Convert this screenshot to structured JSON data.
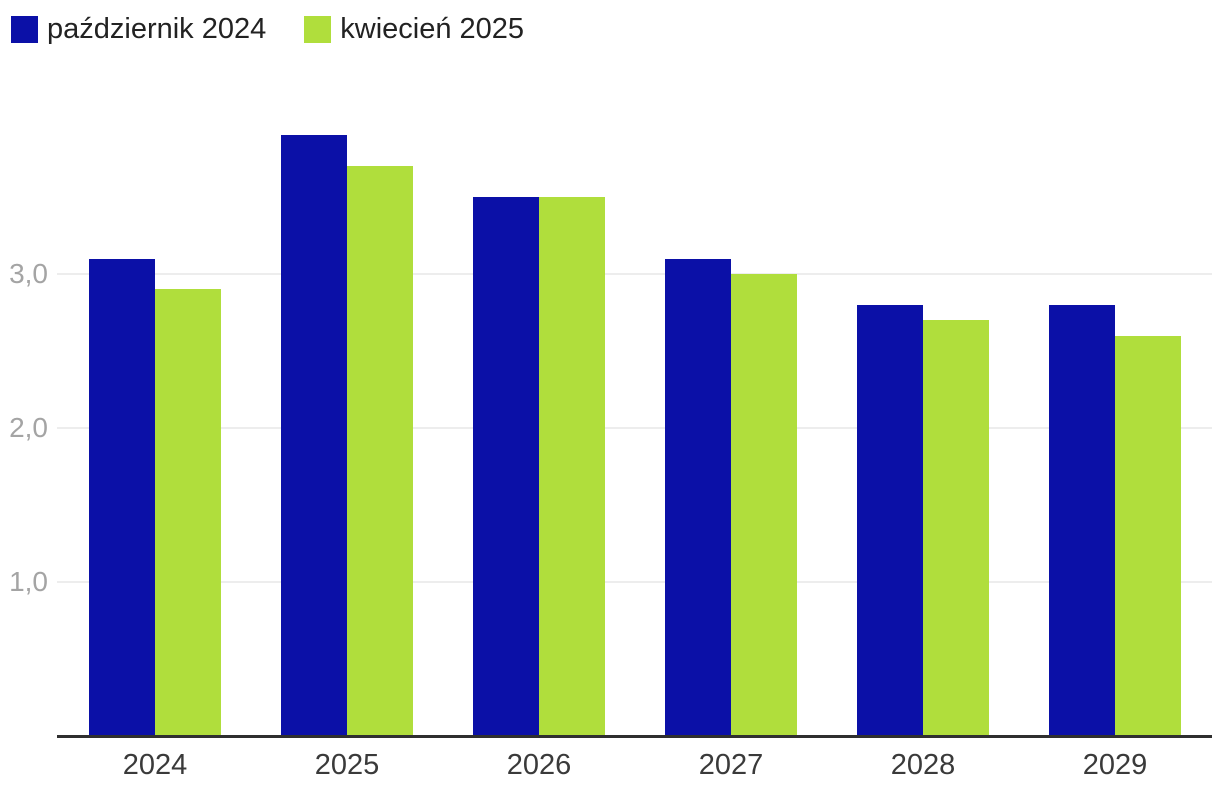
{
  "legend": {
    "items": [
      {
        "label": "październik 2024",
        "color": "#0b10a7"
      },
      {
        "label": "kwiecień 2025",
        "color": "#b0de3c"
      }
    ]
  },
  "chart_data": {
    "type": "bar",
    "categories": [
      "2024",
      "2025",
      "2026",
      "2027",
      "2028",
      "2029"
    ],
    "series": [
      {
        "name": "październik 2024",
        "color": "#0b10a7",
        "values": [
          3.1,
          3.9,
          3.5,
          3.1,
          2.8,
          2.8
        ]
      },
      {
        "name": "kwiecień 2025",
        "color": "#b0de3c",
        "values": [
          2.9,
          3.7,
          3.5,
          3.0,
          2.7,
          2.6
        ]
      }
    ],
    "title": "",
    "xlabel": "",
    "ylabel": "",
    "ylim": [
      0,
      4.2
    ],
    "yticks": [
      1,
      2,
      3
    ],
    "ytick_labels": [
      "1,0",
      "2,0",
      "3,0"
    ],
    "grid": true,
    "legend_position": "top-left",
    "colors": {
      "gridline": "#ededed",
      "axis_line": "#2f2f2f",
      "ytick_text": "#a4a4a4",
      "xtick_text": "#3a3a3a"
    }
  }
}
